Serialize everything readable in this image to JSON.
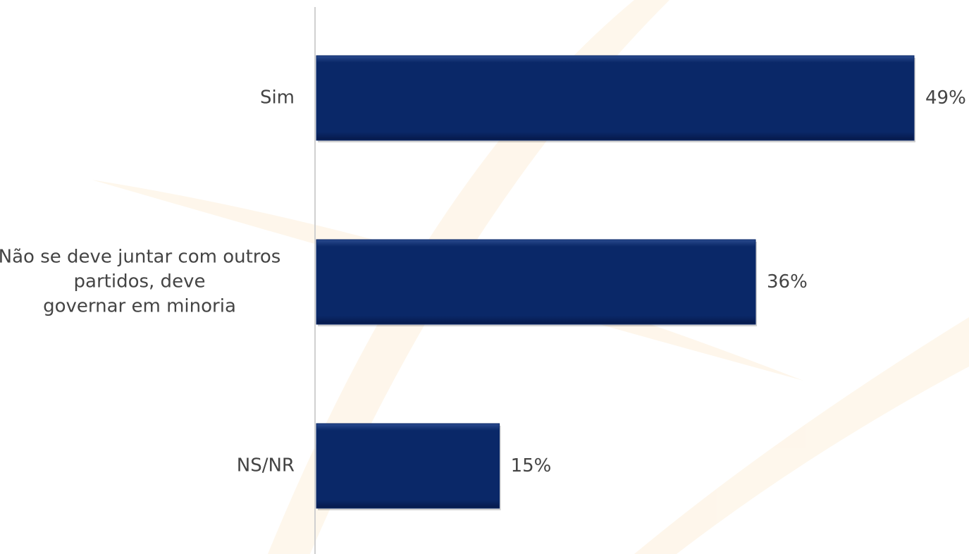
{
  "chart_data": {
    "type": "bar",
    "orientation": "horizontal",
    "categories": [
      "Sim",
      "Não se deve juntar com outros\npartidos, deve\ngovernar em minoria",
      "NS/NR"
    ],
    "values": [
      49,
      36,
      15
    ],
    "value_labels": [
      "49%",
      "36%",
      "15%"
    ],
    "color": "#0a2868"
  }
}
